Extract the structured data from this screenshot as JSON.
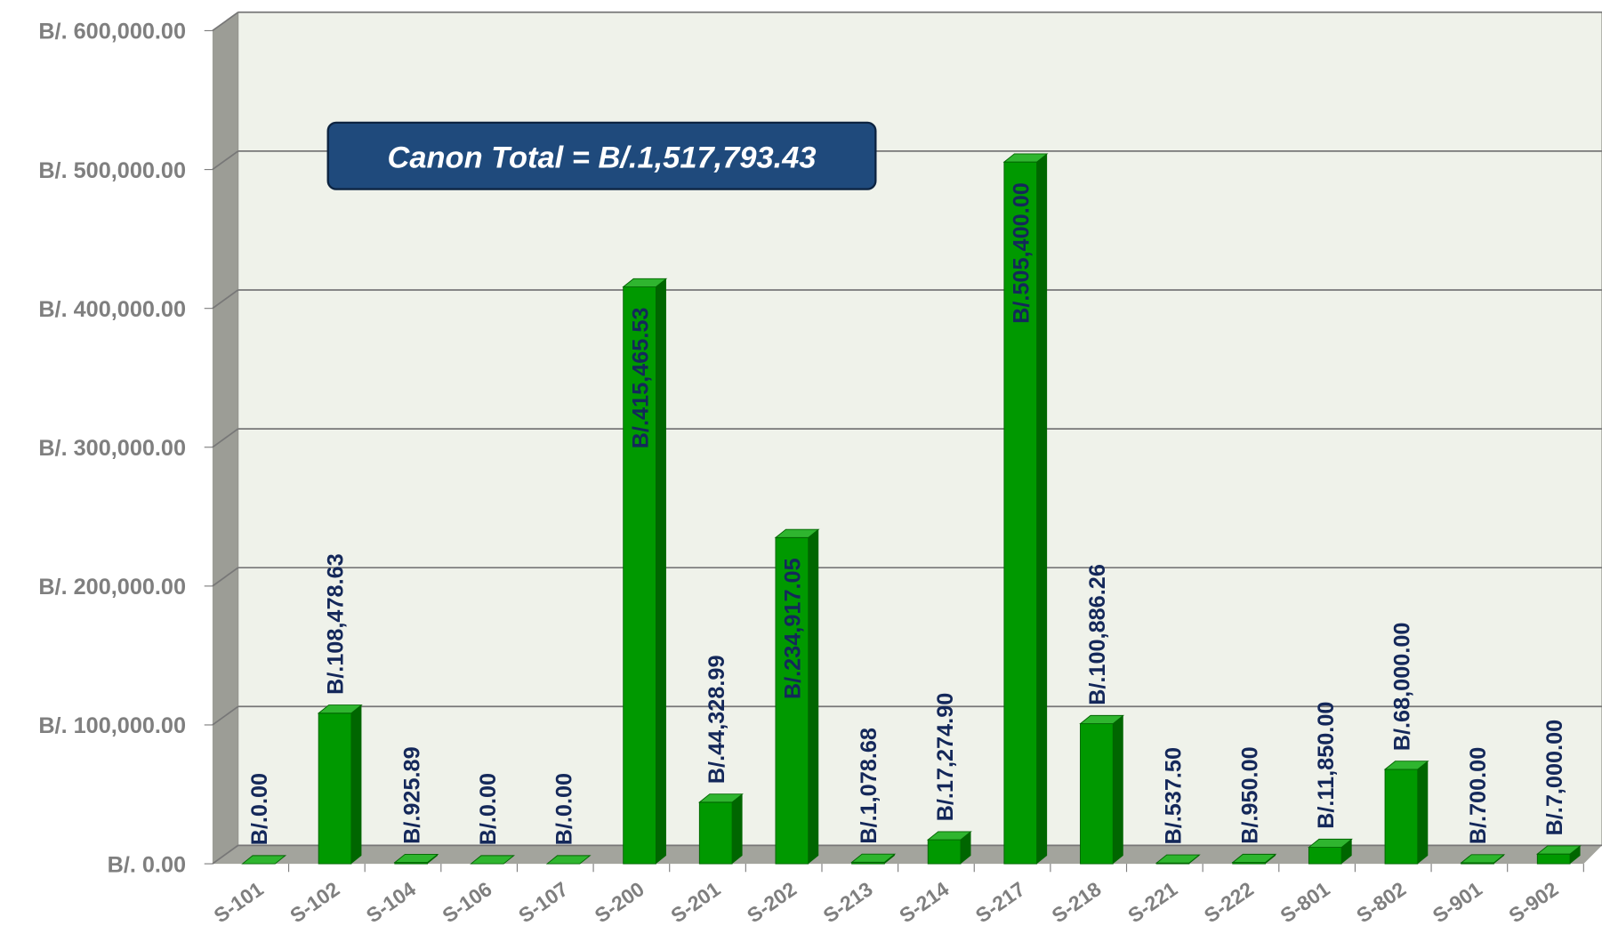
{
  "chart_data": {
    "type": "bar3d",
    "annotation": "Canon Total = B/.1,517,793.43",
    "categories": [
      "S-101",
      "S-102",
      "S-104",
      "S-106",
      "S-107",
      "S-200",
      "S-201",
      "S-202",
      "S-213",
      "S-214",
      "S-217",
      "S-218",
      "S-221",
      "S-222",
      "S-801",
      "S-802",
      "S-901",
      "S-902"
    ],
    "values": [
      0,
      108478.63,
      925.89,
      0,
      0,
      415465.53,
      44328.99,
      234917.05,
      1078.68,
      17274.9,
      505400.0,
      100886.26,
      537.5,
      950.0,
      11850.0,
      68000.0,
      700.0,
      7000.0
    ],
    "value_labels": [
      "B/.0.00",
      "B/.108,478.63",
      "B/.925.89",
      "B/.0.00",
      "B/.0.00",
      "B/.415,465.53",
      "B/.44,328.99",
      "B/.234,917.05",
      "B/.1,078.68",
      "B/.17,274.90",
      "B/.505,400.00",
      "B/.100,886.26",
      "B/.537.50",
      "B/.950.00",
      "B/.11,850.00",
      "B/.68,000.00",
      "B/.700.00",
      "B/.7,000.00"
    ],
    "color": "#009900",
    "ylim": [
      0,
      600000
    ],
    "yticks": [
      {
        "value": 0,
        "label": "B/. 0.00"
      },
      {
        "value": 100000,
        "label": "B/. 100,000.00"
      },
      {
        "value": 200000,
        "label": "B/. 200,000.00"
      },
      {
        "value": 300000,
        "label": "B/. 300,000.00"
      },
      {
        "value": 400000,
        "label": "B/. 400,000.00"
      },
      {
        "value": 500000,
        "label": "B/. 500,000.00"
      },
      {
        "value": 600000,
        "label": "B/. 600,000.00"
      }
    ],
    "grid": true
  }
}
